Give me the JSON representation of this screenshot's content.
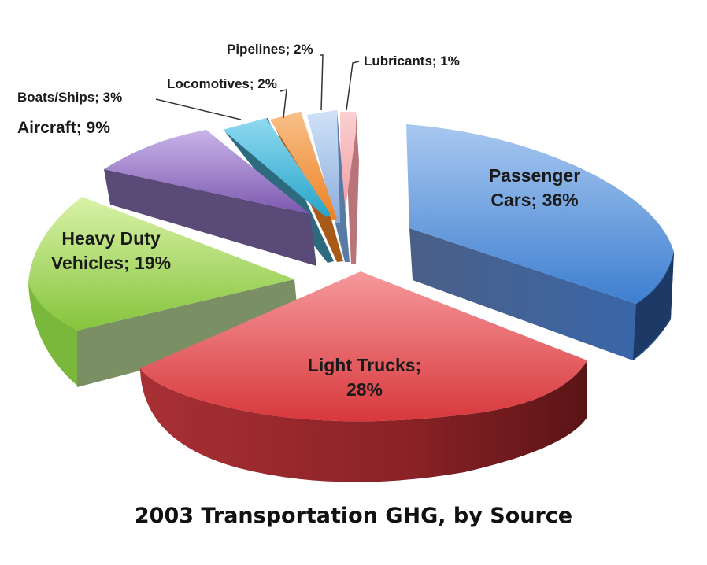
{
  "chart_data": {
    "type": "pie",
    "title": "2003 Transportation GHG, by Source",
    "labels_style": "name; percent",
    "slices": [
      {
        "name": "Passenger Cars",
        "value": 36,
        "label": "Passenger Cars; 36%",
        "color": "#5b8fd4",
        "side": "#3a5580"
      },
      {
        "name": "Light Trucks",
        "value": 28,
        "label": "Light Trucks; 28%",
        "color": "#e0464a",
        "side": "#8a2226"
      },
      {
        "name": "Heavy Duty Vehicles",
        "value": 19,
        "label": "Heavy Duty Vehicles; 19%",
        "color": "#8fd04a",
        "side": "#6f9a48"
      },
      {
        "name": "Aircraft",
        "value": 9,
        "label": "Aircraft; 9%",
        "color": "#8866b8",
        "side": "#5a4a78"
      },
      {
        "name": "Boats/Ships",
        "value": 3,
        "label": "Boats/Ships; 3%",
        "color": "#33b0d0",
        "side": "#2d6a7e"
      },
      {
        "name": "Locomotives",
        "value": 2,
        "label": "Locomotives; 2%",
        "color": "#f08a2c",
        "side": "#a85a18"
      },
      {
        "name": "Pipelines",
        "value": 2,
        "label": "Pipelines; 2%",
        "color": "#8cb2e6",
        "side": "#5a7aa6"
      },
      {
        "name": "Lubricants",
        "value": 1,
        "label": "Lubricants; 1%",
        "color": "#f2a2a6",
        "side": "#b87478"
      }
    ]
  },
  "labels": {
    "cars_line1": "Passenger",
    "cars_line2": "Cars; 36%",
    "trucks_line1": "Light Trucks;",
    "trucks_line2": "28%",
    "heavy_line1": "Heavy Duty",
    "heavy_line2": "Vehicles; 19%",
    "aircraft": "Aircraft; 9%",
    "boats": "Boats/Ships; 3%",
    "locomotives": "Locomotives; 2%",
    "pipelines": "Pipelines; 2%",
    "lubricants": "Lubricants; 1%"
  }
}
